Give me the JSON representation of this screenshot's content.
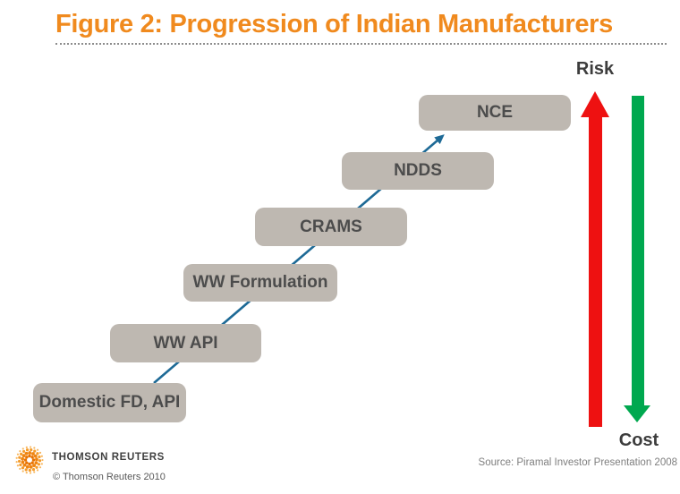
{
  "title": "Figure 2: Progression of Indian Manufacturers",
  "diagram": {
    "stages": [
      {
        "label": "Domestic FD, API"
      },
      {
        "label": "WW API"
      },
      {
        "label": "WW Formulation"
      },
      {
        "label": "CRAMS"
      },
      {
        "label": "NDDS"
      },
      {
        "label": "NCE"
      }
    ],
    "risk_label": "Risk",
    "cost_label": "Cost",
    "colors": {
      "title": "#f08a1e",
      "stage_box": "#beb8b1",
      "stage_text": "#4c4c4c",
      "progression_arrow": "#1e6a96",
      "risk_arrow": "#ee1111",
      "cost_arrow": "#00a84f"
    }
  },
  "footer": {
    "brand": "THOMSON REUTERS",
    "copyright": "© Thomson Reuters 2010",
    "source": "Source: Piramal Investor Presentation 2008"
  }
}
